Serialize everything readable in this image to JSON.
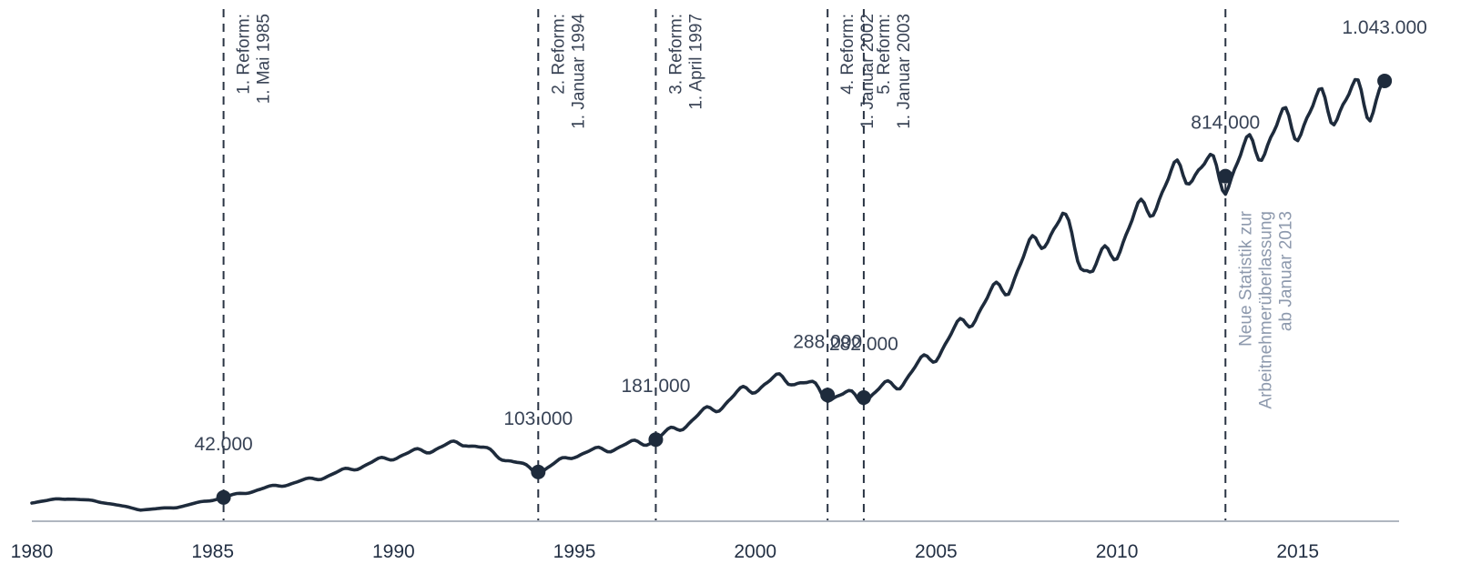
{
  "chart_data": {
    "type": "line",
    "title": "",
    "xlabel": "",
    "ylabel": "",
    "xlim": [
      1980,
      2017.8
    ],
    "ylim": [
      0,
      1150000
    ],
    "x_ticks": [
      "1980",
      "1985",
      "1990",
      "1995",
      "2000",
      "2005",
      "2010",
      "2015"
    ],
    "grid": false,
    "legend": "none",
    "series": [
      {
        "color": "#1e2b3c",
        "seasonal_amplitude": 0.055,
        "x": [
          1980.0,
          1981.0,
          1982.0,
          1983.0,
          1984.0,
          1985.3,
          1986.5,
          1988.0,
          1990.0,
          1992.0,
          1994.0,
          1995.0,
          1996.0,
          1997.25,
          1998.5,
          2000.0,
          2001.0,
          2002.0,
          2003.0,
          2004.0,
          2005.0,
          2006.0,
          2007.0,
          2008.0,
          2008.5,
          2009.3,
          2010.0,
          2011.0,
          2012.0,
          2013.0,
          2014.0,
          2015.0,
          2016.0,
          2017.0,
          2017.4
        ],
        "values": [
          30000,
          40000,
          30000,
          12000,
          18000,
          42000,
          65000,
          90000,
          140000,
          175000,
          103000,
          145000,
          160000,
          181000,
          240000,
          310000,
          330000,
          288000,
          282000,
          320000,
          390000,
          480000,
          560000,
          680000,
          700000,
          580000,
          650000,
          760000,
          840000,
          814000,
          900000,
          950000,
          990000,
          1000000,
          1043000
        ]
      }
    ],
    "highlight_points": [
      {
        "x": 1985.3,
        "value": 42000,
        "label": "42.000"
      },
      {
        "x": 1994.0,
        "value": 103000,
        "label": "103.000"
      },
      {
        "x": 1997.25,
        "value": 181000,
        "label": "181.000"
      },
      {
        "x": 2002.0,
        "value": 288000,
        "label": "288.000"
      },
      {
        "x": 2003.0,
        "value": 282000,
        "label": "282.000"
      },
      {
        "x": 2013.0,
        "value": 814000,
        "label": "814.000"
      },
      {
        "x": 2017.4,
        "value": 1043000,
        "label": "1.043.000"
      }
    ],
    "annotations": [
      {
        "x": 1985.3,
        "lines": [
          "1. Reform:",
          "1. Mai 1985"
        ]
      },
      {
        "x": 1994.0,
        "lines": [
          "2. Reform:",
          "1. Januar 1994"
        ]
      },
      {
        "x": 1997.25,
        "lines": [
          "3. Reform:",
          "1. April 1997"
        ]
      },
      {
        "x": 2002.0,
        "lines": [
          "4. Reform:",
          "1. Januar 2002"
        ]
      },
      {
        "x": 2003.0,
        "lines": [
          "5. Reform:",
          "1. Januar 2003"
        ]
      },
      {
        "x": 2013.0,
        "lines": [
          "Neue Statistik zur",
          "Arbeitnehmerüberlassung",
          "ab Januar 2013"
        ],
        "style": "note"
      }
    ]
  }
}
